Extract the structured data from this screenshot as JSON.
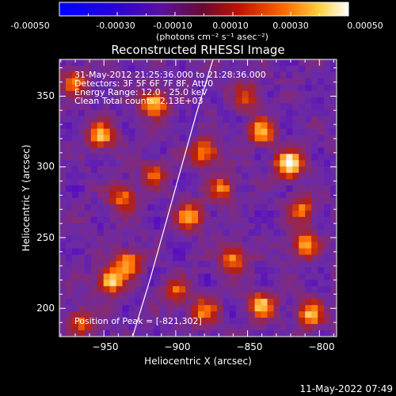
{
  "colorbar": {
    "ticks": [
      "-0.00050",
      "-0.00030",
      "-0.00010",
      "0.00010",
      "0.00030",
      "0.00050"
    ],
    "unit_label": "(photons cm⁻² s⁻¹ asec⁻²)",
    "range": [
      -0.0005,
      0.0005
    ]
  },
  "annotations": {
    "time": "31-May-2012 21:25:36.000 to 21:28:36.000",
    "detectors": "Detectors: 3F 5F 6F 7F 8F, Att/0",
    "energy": "Energy Range: 12.0 - 25.0 keV",
    "clean": "Clean     Total counts: 2.13E+03",
    "peak": "Position of Peak = [-821,302]"
  },
  "footer": {
    "timestamp": "11-May-2022 07:49"
  },
  "chart_data": {
    "type": "heatmap",
    "title": "Reconstructed RHESSI Image",
    "xlabel": "Heliocentric X (arcsec)",
    "ylabel": "Heliocentric Y (arcsec)",
    "xlim": [
      -981,
      -788
    ],
    "ylim": [
      180,
      376
    ],
    "xticks": [
      -950,
      -900,
      -850,
      -800
    ],
    "yticks": [
      200,
      250,
      300,
      350
    ],
    "xticklabels": [
      "−950",
      "−900",
      "−850",
      "−800"
    ],
    "yticklabels": [
      "200",
      "250",
      "300",
      "350"
    ],
    "colormap": [
      "#0000ff",
      "#5000c8",
      "#6a2aa8",
      "#8a2a6a",
      "#b81e10",
      "#ff6a00",
      "#ffc040",
      "#ffffff"
    ],
    "peak": [
      -821,
      302
    ],
    "blobs": [
      {
        "x": -821,
        "y": 302,
        "amp": 1.0
      },
      {
        "x": -945,
        "y": 220,
        "amp": 0.85
      },
      {
        "x": -933,
        "y": 232,
        "amp": 0.7
      },
      {
        "x": -915,
        "y": 345,
        "amp": 0.8
      },
      {
        "x": -952,
        "y": 322,
        "amp": 0.75
      },
      {
        "x": -840,
        "y": 325,
        "amp": 0.75
      },
      {
        "x": -880,
        "y": 310,
        "amp": 0.7
      },
      {
        "x": -937,
        "y": 278,
        "amp": 0.6
      },
      {
        "x": -890,
        "y": 265,
        "amp": 0.7
      },
      {
        "x": -868,
        "y": 285,
        "amp": 0.6
      },
      {
        "x": -860,
        "y": 235,
        "amp": 0.65
      },
      {
        "x": -810,
        "y": 245,
        "amp": 0.7
      },
      {
        "x": -812,
        "y": 270,
        "amp": 0.55
      },
      {
        "x": -900,
        "y": 212,
        "amp": 0.5
      },
      {
        "x": -880,
        "y": 198,
        "amp": 0.6
      },
      {
        "x": -840,
        "y": 202,
        "amp": 0.75
      },
      {
        "x": -806,
        "y": 196,
        "amp": 0.7
      },
      {
        "x": -970,
        "y": 360,
        "amp": 0.55
      },
      {
        "x": -966,
        "y": 190,
        "amp": 0.55
      },
      {
        "x": -915,
        "y": 295,
        "amp": 0.5
      },
      {
        "x": -850,
        "y": 350,
        "amp": 0.45
      }
    ],
    "limb_curve": [
      [
        -930,
        180
      ],
      [
        -918,
        220
      ],
      [
        -907,
        260
      ],
      [
        -896,
        300
      ],
      [
        -885,
        340
      ],
      [
        -874,
        376
      ]
    ]
  }
}
